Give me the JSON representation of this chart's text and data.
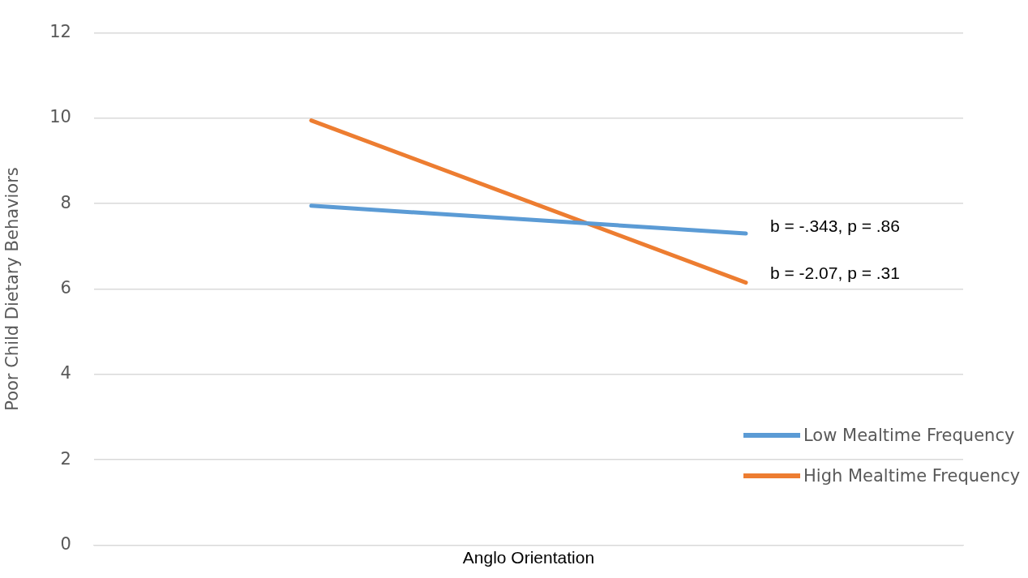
{
  "chart_data": {
    "type": "line",
    "xlabel": "Anglo Orientation",
    "ylabel": "Poor Child Dietary Behaviors",
    "categories": [
      null,
      null
    ],
    "series": [
      {
        "name": "Low Mealtime Frequency",
        "color": "#5b9bd5",
        "values": [
          7.95,
          7.3
        ]
      },
      {
        "name": "High Mealtime Frequency",
        "color": "#ed7d31",
        "values": [
          9.95,
          6.15
        ]
      }
    ],
    "ylim": [
      0,
      12
    ],
    "yticks": [
      0,
      2,
      4,
      6,
      8,
      10,
      12
    ],
    "grid": "y",
    "legend": "bottom right",
    "marker": "none",
    "line_style": "solid",
    "tick_labels": "y",
    "annotations": [
      "b = -.343, p = .86",
      "b = -2.07, p = .31"
    ]
  }
}
